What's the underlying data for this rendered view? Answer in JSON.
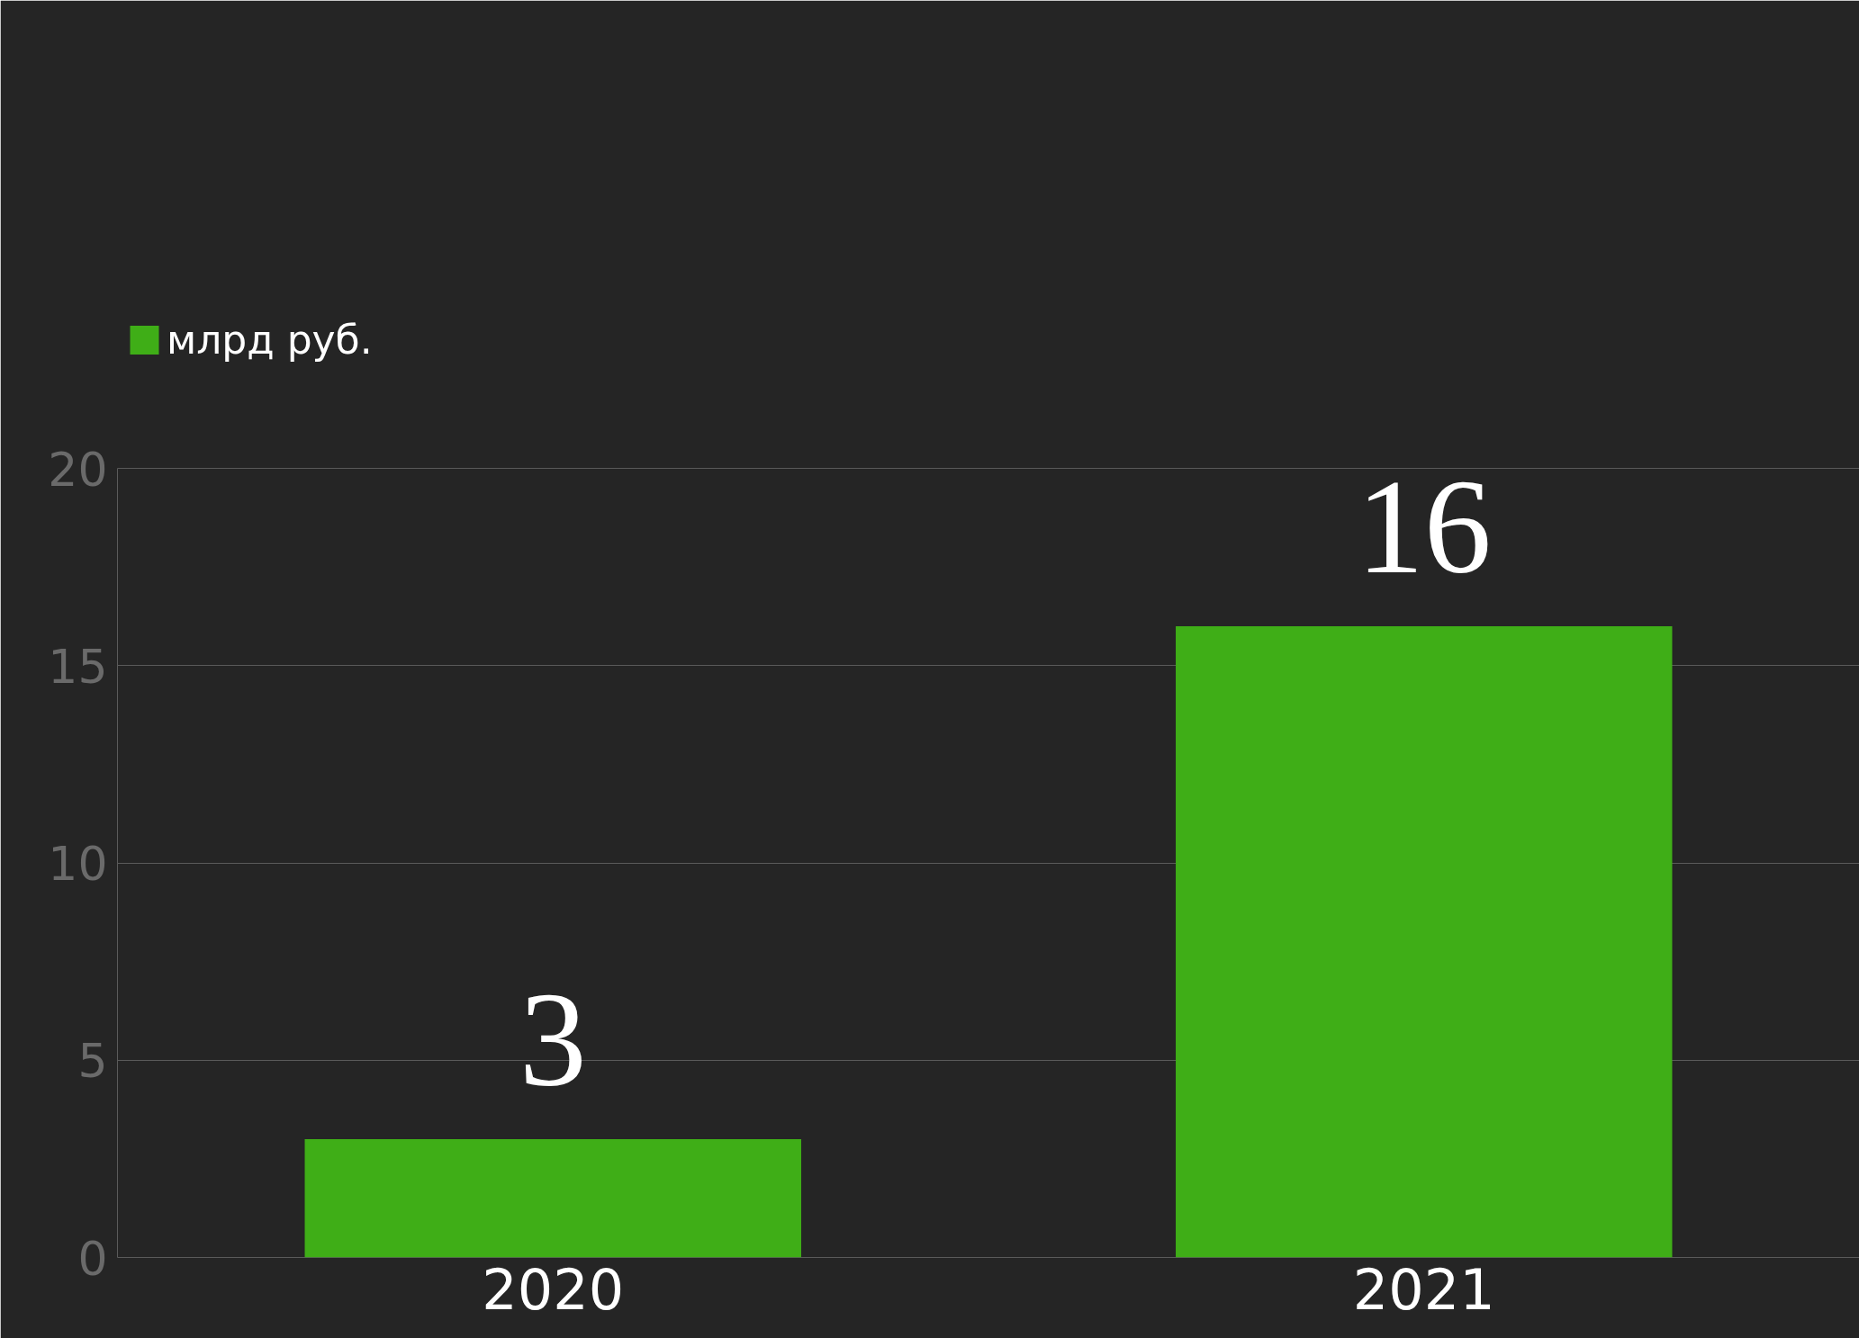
{
  "chart_data": {
    "type": "bar",
    "categories": [
      "2020",
      "2021"
    ],
    "series": [
      {
        "name": "млрд руб.",
        "color": "#3fae17",
        "values": [
          3,
          16
        ]
      }
    ],
    "ylim": [
      0,
      20
    ],
    "yticks": [
      0,
      5,
      10,
      15,
      20
    ],
    "grid": "y",
    "legend": "top left",
    "data_labels": true
  }
}
